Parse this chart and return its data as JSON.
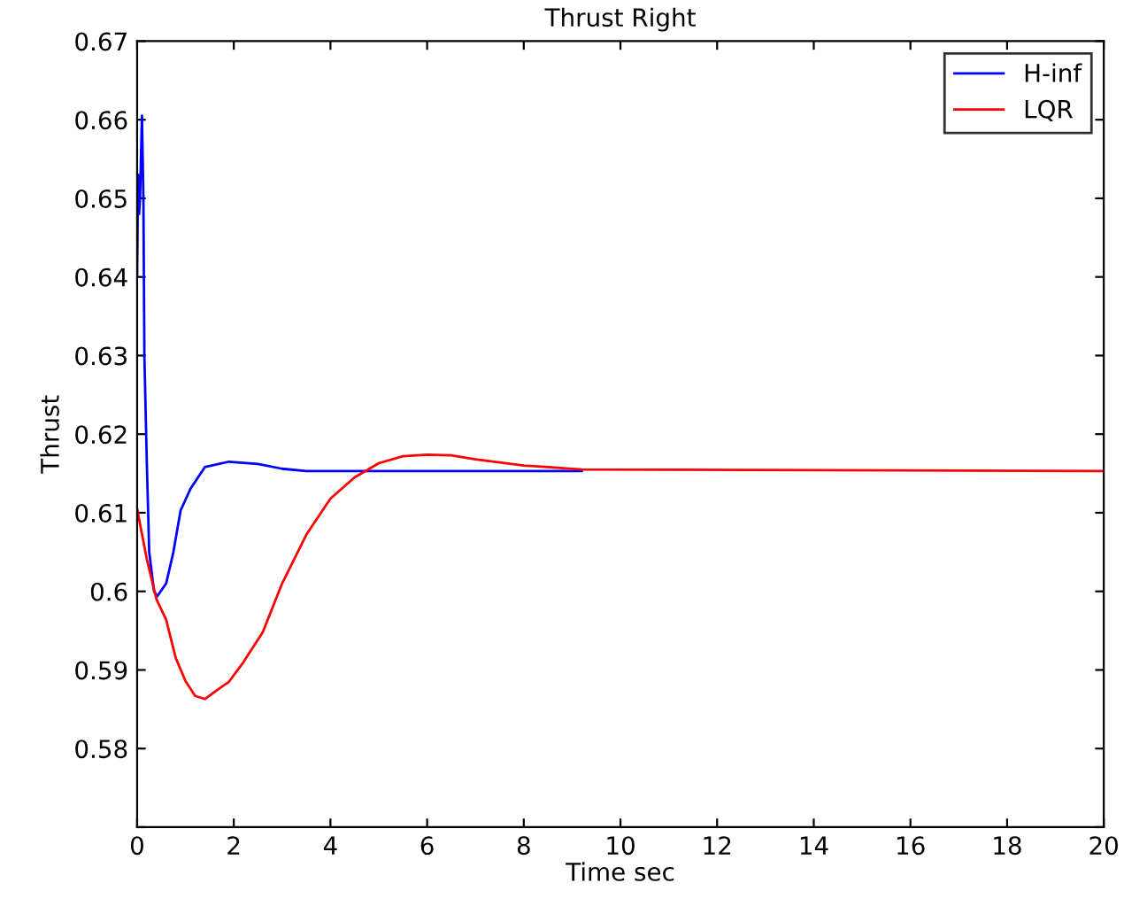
{
  "chart_data": {
    "type": "line",
    "title": "Thrust Right",
    "xlabel": "Time sec",
    "ylabel": "Thrust",
    "xlim": [
      0,
      20
    ],
    "xticks": [
      0,
      2,
      4,
      6,
      8,
      10,
      12,
      14,
      16,
      18,
      20
    ],
    "ylim": [
      0.57,
      0.67
    ],
    "yticks": [
      {
        "value": 0.57,
        "label": null
      },
      0.58,
      0.59,
      0.6,
      0.61,
      0.62,
      0.63,
      0.64,
      0.65,
      0.66,
      0.67
    ],
    "grid": false,
    "legend": "top right",
    "marker": "none",
    "line_style": "solid",
    "series": [
      {
        "name": "H-inf",
        "color": "#0000ff",
        "x": [
          0,
          0.02,
          0.04,
          0.06,
          0.1,
          0.13,
          0.15,
          0.2,
          0.25,
          0.3,
          0.35,
          0.42,
          0.6,
          0.75,
          0.9,
          1.1,
          1.4,
          1.9,
          2.5,
          3,
          3.5,
          4,
          6,
          9.2
        ],
        "values": [
          0.64,
          0.653,
          0.648,
          0.65,
          0.6605,
          0.65,
          0.63,
          0.6165,
          0.605,
          0.6025,
          0.6,
          0.5994,
          0.601,
          0.605,
          0.6103,
          0.613,
          0.6158,
          0.6165,
          0.6162,
          0.6156,
          0.6153,
          0.6153,
          0.6153,
          0.6153
        ]
      },
      {
        "name": "LQR",
        "color": "#ff0000",
        "x": [
          0,
          0.2,
          0.4,
          0.6,
          0.8,
          1.0,
          1.2,
          1.4,
          1.6,
          1.9,
          2.2,
          2.6,
          3.0,
          3.5,
          4.0,
          4.5,
          5,
          5.5,
          6,
          6.5,
          7,
          7.5,
          8,
          8.5,
          9.2,
          20
        ],
        "values": [
          0.6105,
          0.6041,
          0.599,
          0.5964,
          0.5915,
          0.5886,
          0.5867,
          0.5863,
          0.5872,
          0.5885,
          0.591,
          0.5948,
          0.601,
          0.6072,
          0.6118,
          0.6145,
          0.6163,
          0.6172,
          0.6174,
          0.6173,
          0.6168,
          0.6164,
          0.616,
          0.6158,
          0.6155,
          0.6153
        ]
      }
    ]
  }
}
